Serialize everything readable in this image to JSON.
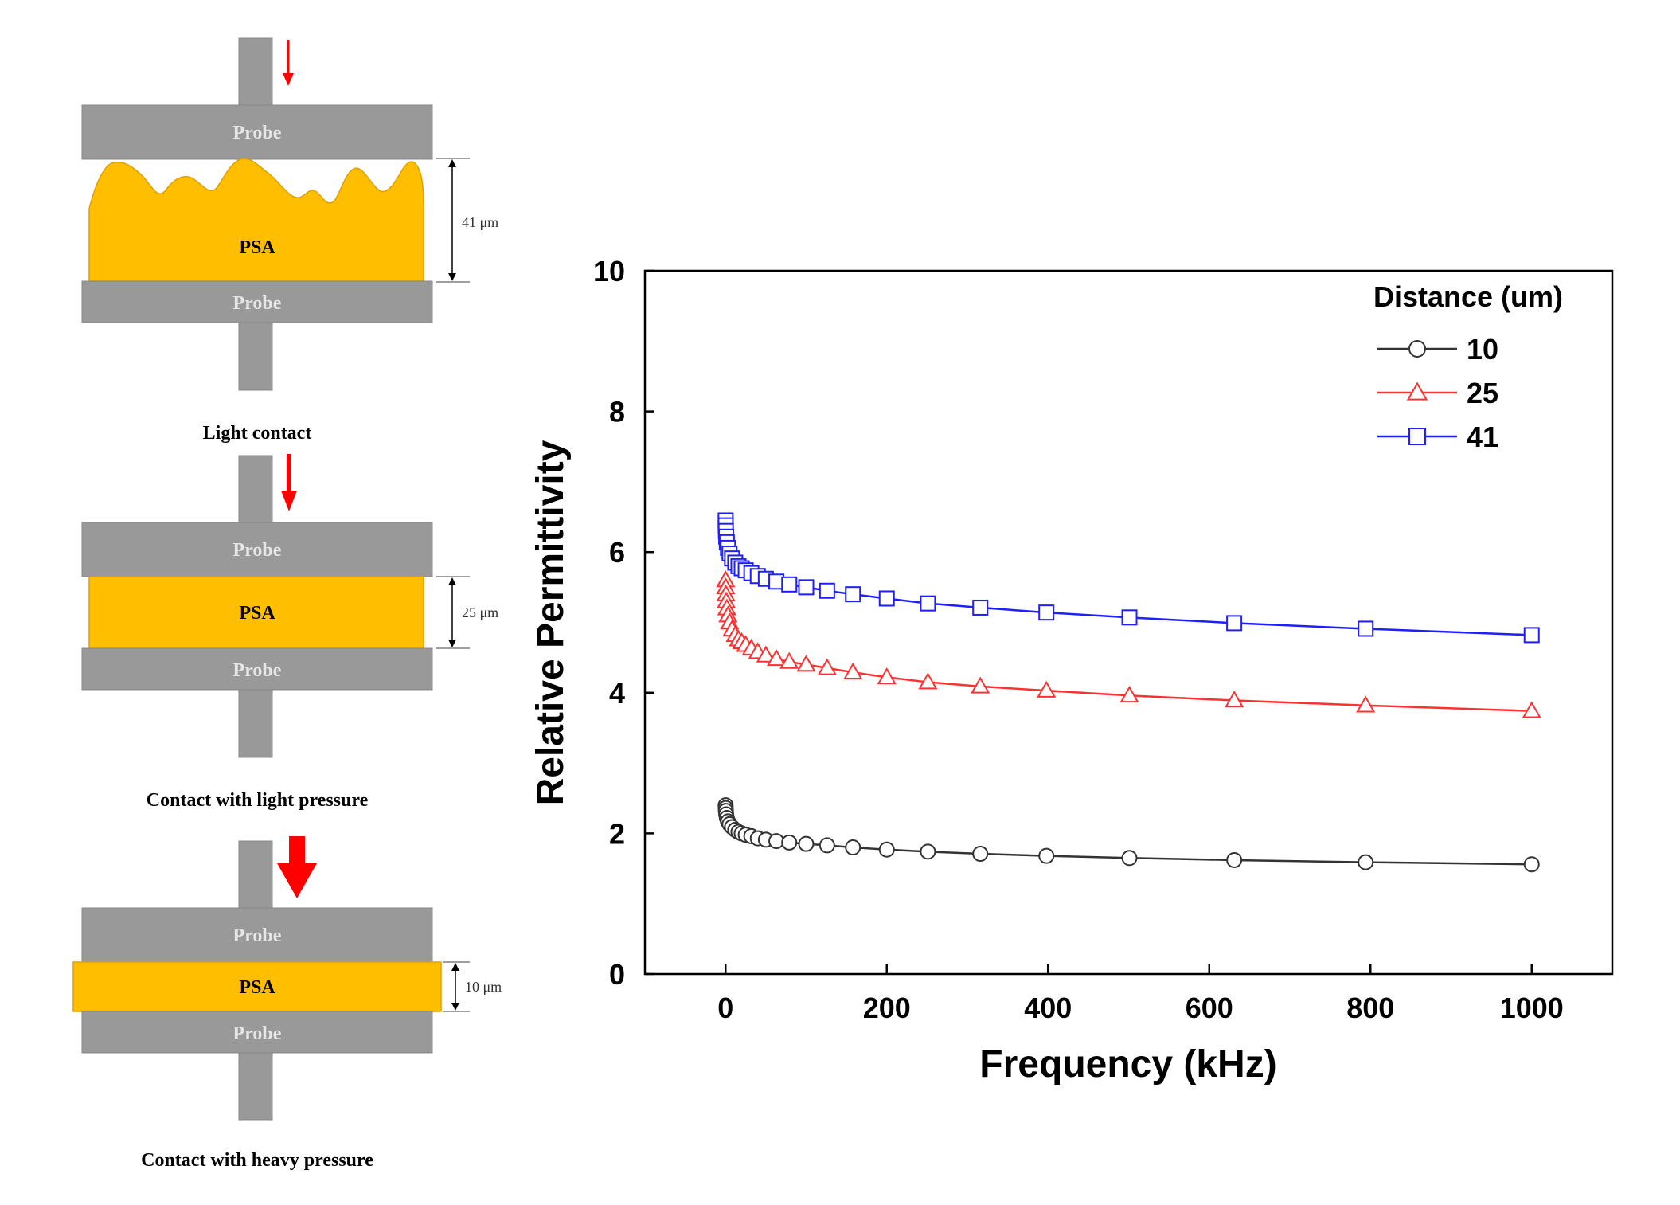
{
  "colors": {
    "probe": "#999999",
    "psa": "#ffbe00",
    "arrow": "#ff0000",
    "series_black": "#333333",
    "series_red": "#ff3030",
    "series_blue": "#1e1eff"
  },
  "schematic": {
    "panels": [
      {
        "probe_top": "Probe",
        "psa": "PSA",
        "probe_bottom": "Probe",
        "thickness": "41 μm",
        "caption": "Light contact",
        "pressure": "light"
      },
      {
        "probe_top": "Probe",
        "psa": "PSA",
        "probe_bottom": "Probe",
        "thickness": "25 μm",
        "caption": "Contact with light pressure",
        "pressure": "medium"
      },
      {
        "probe_top": "Probe",
        "psa": "PSA",
        "probe_bottom": "Probe",
        "thickness": "10 μm",
        "caption": "Contact with heavy pressure",
        "pressure": "heavy"
      }
    ]
  },
  "chart_data": {
    "type": "line",
    "title": "",
    "xlabel": "Frequency (kHz)",
    "ylabel": "Relative Permittivity",
    "xlim": [
      -100,
      1100
    ],
    "ylim": [
      0,
      10
    ],
    "xticks": [
      0,
      200,
      400,
      600,
      800,
      1000
    ],
    "yticks": [
      0,
      2,
      4,
      6,
      8,
      10
    ],
    "legend_title": "Distance (um)",
    "legend_position": "top-right",
    "x": [
      0.1,
      0.2,
      0.4,
      0.8,
      1.6,
      3,
      5,
      8,
      12,
      16,
      20,
      25,
      32,
      40,
      50,
      63,
      79,
      100,
      126,
      158,
      200,
      251,
      316,
      398,
      501,
      631,
      794,
      1000
    ],
    "series": [
      {
        "name": "10",
        "marker": "circle",
        "color": "#333333",
        "values": [
          2.4,
          2.36,
          2.32,
          2.27,
          2.22,
          2.17,
          2.13,
          2.09,
          2.05,
          2.02,
          2.0,
          1.98,
          1.96,
          1.93,
          1.91,
          1.89,
          1.87,
          1.85,
          1.83,
          1.8,
          1.77,
          1.74,
          1.71,
          1.68,
          1.65,
          1.62,
          1.59,
          1.56
        ]
      },
      {
        "name": "25",
        "marker": "triangle",
        "color": "#ff3030",
        "values": [
          5.6,
          5.5,
          5.4,
          5.3,
          5.2,
          5.1,
          5.0,
          4.9,
          4.82,
          4.76,
          4.72,
          4.68,
          4.63,
          4.58,
          4.53,
          4.48,
          4.44,
          4.4,
          4.35,
          4.29,
          4.22,
          4.15,
          4.09,
          4.03,
          3.96,
          3.89,
          3.82,
          3.74
        ]
      },
      {
        "name": "41",
        "marker": "square",
        "color": "#1e1eff",
        "values": [
          6.45,
          6.38,
          6.3,
          6.22,
          6.14,
          6.06,
          5.98,
          5.91,
          5.85,
          5.8,
          5.77,
          5.74,
          5.7,
          5.66,
          5.62,
          5.58,
          5.54,
          5.5,
          5.45,
          5.4,
          5.34,
          5.27,
          5.21,
          5.14,
          5.07,
          4.99,
          4.91,
          4.82
        ]
      }
    ]
  }
}
